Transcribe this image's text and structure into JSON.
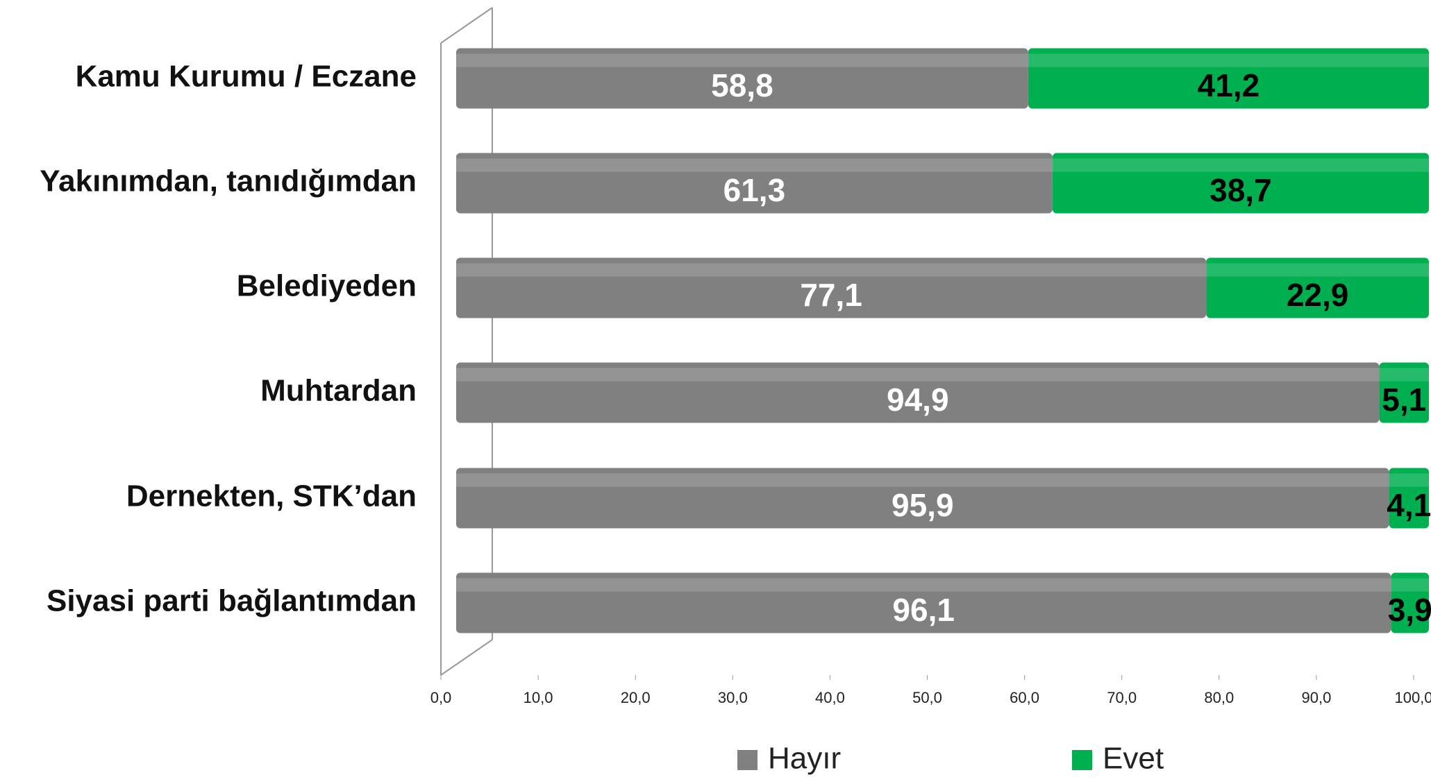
{
  "chart_data": {
    "type": "stacked-barh",
    "categories": [
      "Kamu Kurumu / Eczane",
      "Yakınımdan, tanıdığımdan",
      "Belediyeden",
      "Muhtardan",
      "Dernekten, STK’dan",
      "Siyasi parti bağlantımdan"
    ],
    "series": [
      {
        "name": "Hayır",
        "color": "#808080",
        "values": [
          58.8,
          61.3,
          77.1,
          94.9,
          95.9,
          96.1
        ],
        "value_labels": [
          "58,8",
          "61,3",
          "77,1",
          "94,9",
          "95,9",
          "96,1"
        ]
      },
      {
        "name": "Evet",
        "color": "#00b050",
        "values": [
          41.2,
          38.7,
          22.9,
          5.1,
          4.1,
          3.9
        ],
        "value_labels": [
          "41,2",
          "38,7",
          "22,9",
          "5,1",
          "4,1",
          "3,9"
        ]
      }
    ],
    "xlim": [
      0,
      100
    ],
    "xticks": [
      {
        "value": 0,
        "label": "0,0"
      },
      {
        "value": 10,
        "label": "10,0"
      },
      {
        "value": 20,
        "label": "20,0"
      },
      {
        "value": 30,
        "label": "30,0"
      },
      {
        "value": 40,
        "label": "40,0"
      },
      {
        "value": 50,
        "label": "50,0"
      },
      {
        "value": 60,
        "label": "60,0"
      },
      {
        "value": 70,
        "label": "70,0"
      },
      {
        "value": 80,
        "label": "80,0"
      },
      {
        "value": 90,
        "label": "90,0"
      },
      {
        "value": 100,
        "label": "100,0"
      }
    ],
    "legend": "bottom"
  }
}
